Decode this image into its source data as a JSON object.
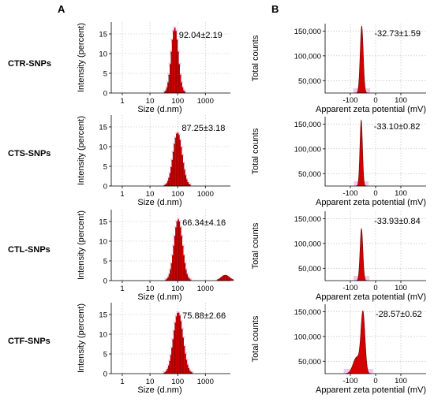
{
  "figure": {
    "panels": {
      "A": "A",
      "B": "B"
    },
    "row_labels": [
      "CTR-SNPs",
      "CTS-SNPs",
      "CTL-SNPs",
      "CTF-SNPs"
    ],
    "colors": {
      "bars": "#e00000",
      "bar_edge": "#6b0000",
      "halo": "#f3b3e8",
      "zeta_fill": "#d40000"
    }
  },
  "chart_data": [
    {
      "type": "bar",
      "panel": "A",
      "row": "CTR-SNPs",
      "xlabel": "Size (d.nm)",
      "ylabel": "Intensity (percent)",
      "x_scale": "log",
      "xlim": [
        0.4,
        8000
      ],
      "ylim": [
        0,
        18
      ],
      "x_ticks": [
        "1",
        "10",
        "100",
        "1000"
      ],
      "y_ticks": [
        "0",
        "5",
        "10",
        "15"
      ],
      "annotation": "92.04±2.19",
      "peak": {
        "center_nm": 75,
        "log_sigma": 0.125,
        "height": 16.5
      },
      "minor_peak": null,
      "grid": true
    },
    {
      "type": "bar",
      "panel": "A",
      "row": "CTS-SNPs",
      "xlabel": "Size (d.nm)",
      "ylabel": "Intensity (percent)",
      "x_scale": "log",
      "xlim": [
        0.4,
        8000
      ],
      "ylim": [
        0,
        18
      ],
      "x_ticks": [
        "1",
        "10",
        "100",
        "1000"
      ],
      "y_ticks": [
        "0",
        "5",
        "10",
        "15"
      ],
      "annotation": "87.25±3.18",
      "peak": {
        "center_nm": 95,
        "log_sigma": 0.16,
        "height": 13.5
      },
      "minor_peak": null,
      "grid": true
    },
    {
      "type": "bar",
      "panel": "A",
      "row": "CTL-SNPs",
      "xlabel": "Size (d.nm)",
      "ylabel": "Intensity (percent)",
      "x_scale": "log",
      "xlim": [
        0.4,
        8000
      ],
      "ylim": [
        0,
        18
      ],
      "x_ticks": [
        "1",
        "10",
        "100",
        "1000"
      ],
      "y_ticks": [
        "0",
        "5",
        "10",
        "15"
      ],
      "annotation": "66.34±4.16",
      "peak": {
        "center_nm": 100,
        "log_sigma": 0.15,
        "height": 15.5
      },
      "minor_peak": {
        "center_nm": 5000,
        "log_sigma": 0.15,
        "height": 1.4
      },
      "grid": true
    },
    {
      "type": "bar",
      "panel": "A",
      "row": "CTF-SNPs",
      "xlabel": "Size (d.nm)",
      "ylabel": "Intensity (percent)",
      "x_scale": "log",
      "xlim": [
        0.4,
        8000
      ],
      "ylim": [
        0,
        18
      ],
      "x_ticks": [
        "1",
        "10",
        "100",
        "1000"
      ],
      "y_ticks": [
        "0",
        "5",
        "10",
        "15"
      ],
      "annotation": "75.88±2.66",
      "peak": {
        "center_nm": 100,
        "log_sigma": 0.17,
        "height": 15.5
      },
      "minor_peak": null,
      "grid": true
    },
    {
      "type": "area",
      "panel": "B",
      "row": "CTR-SNPs",
      "xlabel": "Apparent zeta potential (mV)",
      "ylabel": "Total counts",
      "xlim": [
        -200,
        200
      ],
      "ylim": [
        25000,
        165000
      ],
      "x_ticks": [
        "-100",
        "0",
        "100"
      ],
      "y_ticks": [
        "50,000",
        "100,000",
        "150,000"
      ],
      "annotation": "-32.73±1.59",
      "peak": {
        "center_mv": -55,
        "sigma": 6,
        "height": 160000
      },
      "shoulder": null,
      "grid": true
    },
    {
      "type": "area",
      "panel": "B",
      "row": "CTS-SNPs",
      "xlabel": "Apparent zeta potential (mV)",
      "ylabel": "Total counts",
      "xlim": [
        -200,
        200
      ],
      "ylim": [
        25000,
        165000
      ],
      "x_ticks": [
        "-100",
        "0",
        "100"
      ],
      "y_ticks": [
        "50,000",
        "100,000",
        "150,000"
      ],
      "annotation": "-33.10±0.82",
      "peak": {
        "center_mv": -57,
        "sigma": 5,
        "height": 158000
      },
      "shoulder": null,
      "grid": true
    },
    {
      "type": "area",
      "panel": "B",
      "row": "CTL-SNPs",
      "xlabel": "Apparent zeta potential (mV)",
      "ylabel": "Total counts",
      "xlim": [
        -200,
        200
      ],
      "ylim": [
        25000,
        165000
      ],
      "x_ticks": [
        "-100",
        "0",
        "100"
      ],
      "y_ticks": [
        "50,000",
        "100,000",
        "150,000"
      ],
      "annotation": "-33.93±0.84",
      "peak": {
        "center_mv": -56,
        "sigma": 5.5,
        "height": 130000
      },
      "shoulder": null,
      "grid": true
    },
    {
      "type": "area",
      "panel": "B",
      "row": "CTF-SNPs",
      "xlabel": "Apparent zeta potential (mV)",
      "ylabel": "Total counts",
      "xlim": [
        -200,
        200
      ],
      "ylim": [
        25000,
        165000
      ],
      "x_ticks": [
        "-100",
        "0",
        "100"
      ],
      "y_ticks": [
        "50,000",
        "100,000",
        "150,000"
      ],
      "annotation": "-28.57±0.62",
      "peak": {
        "center_mv": -50,
        "sigma": 8,
        "height": 145000
      },
      "shoulder": {
        "center_mv": -75,
        "sigma": 14,
        "height": 58000
      },
      "grid": true
    }
  ]
}
